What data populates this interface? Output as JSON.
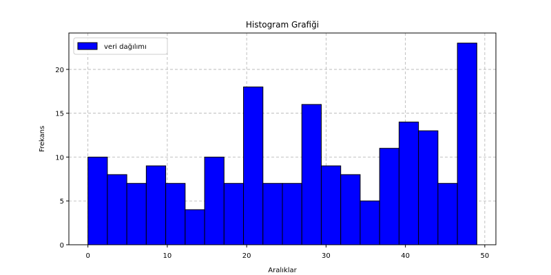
{
  "chart_data": {
    "type": "bar",
    "title": "Histogram Grafiği",
    "xlabel": "Aralıklar",
    "ylabel": "Frekans",
    "xlim": [
      -2.4,
      51.4
    ],
    "ylim": [
      0,
      24.15
    ],
    "xticks": [
      0,
      10,
      20,
      30,
      40,
      50
    ],
    "yticks": [
      0,
      5,
      10,
      15,
      20
    ],
    "grid": true,
    "legend_position": "top-left",
    "bin_start": 0,
    "bin_width": 2.45,
    "series": [
      {
        "name": "veri dağılımı",
        "color": "#0000ff",
        "edge_color": "#000000",
        "values": [
          10,
          8,
          7,
          9,
          7,
          4,
          10,
          7,
          18,
          7,
          7,
          16,
          9,
          8,
          5,
          11,
          14,
          13,
          7,
          23
        ]
      }
    ]
  }
}
